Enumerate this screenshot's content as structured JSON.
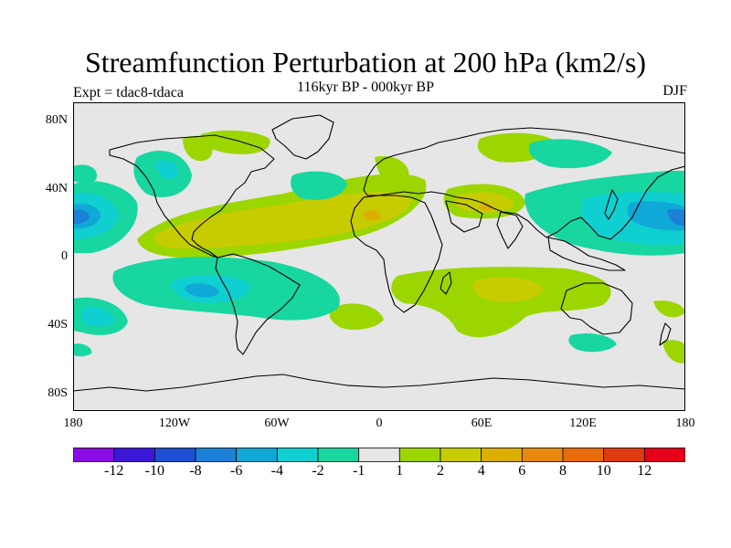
{
  "title": "Streamfunction Perturbation at 200 hPa (km2/s)",
  "subtitle": "116kyr BP - 000kyr BP",
  "left_label": "Expt = tdac8-tdaca",
  "right_label": "DJF",
  "lat_ticks": [
    "80N",
    "40N",
    "0",
    "40S",
    "80S"
  ],
  "lon_ticks": [
    "180",
    "120W",
    "60W",
    "0",
    "60E",
    "120E",
    "180"
  ],
  "colorbar": {
    "labels": [
      "-12",
      "-10",
      "-8",
      "-6",
      "-4",
      "-2",
      "-1",
      "1",
      "2",
      "4",
      "6",
      "8",
      "10",
      "12"
    ],
    "colors": [
      "#8a0de6",
      "#3b18d8",
      "#1f4fd2",
      "#1a80d8",
      "#10a8d6",
      "#0fcfd1",
      "#18d6a0",
      "#e6e6e6",
      "#9bd600",
      "#c7cc00",
      "#dcae00",
      "#e8890c",
      "#e86b0a",
      "#e03b10",
      "#e6001a"
    ]
  },
  "colors": {
    "background": "#e6e6e6",
    "coast": "#000000"
  }
}
